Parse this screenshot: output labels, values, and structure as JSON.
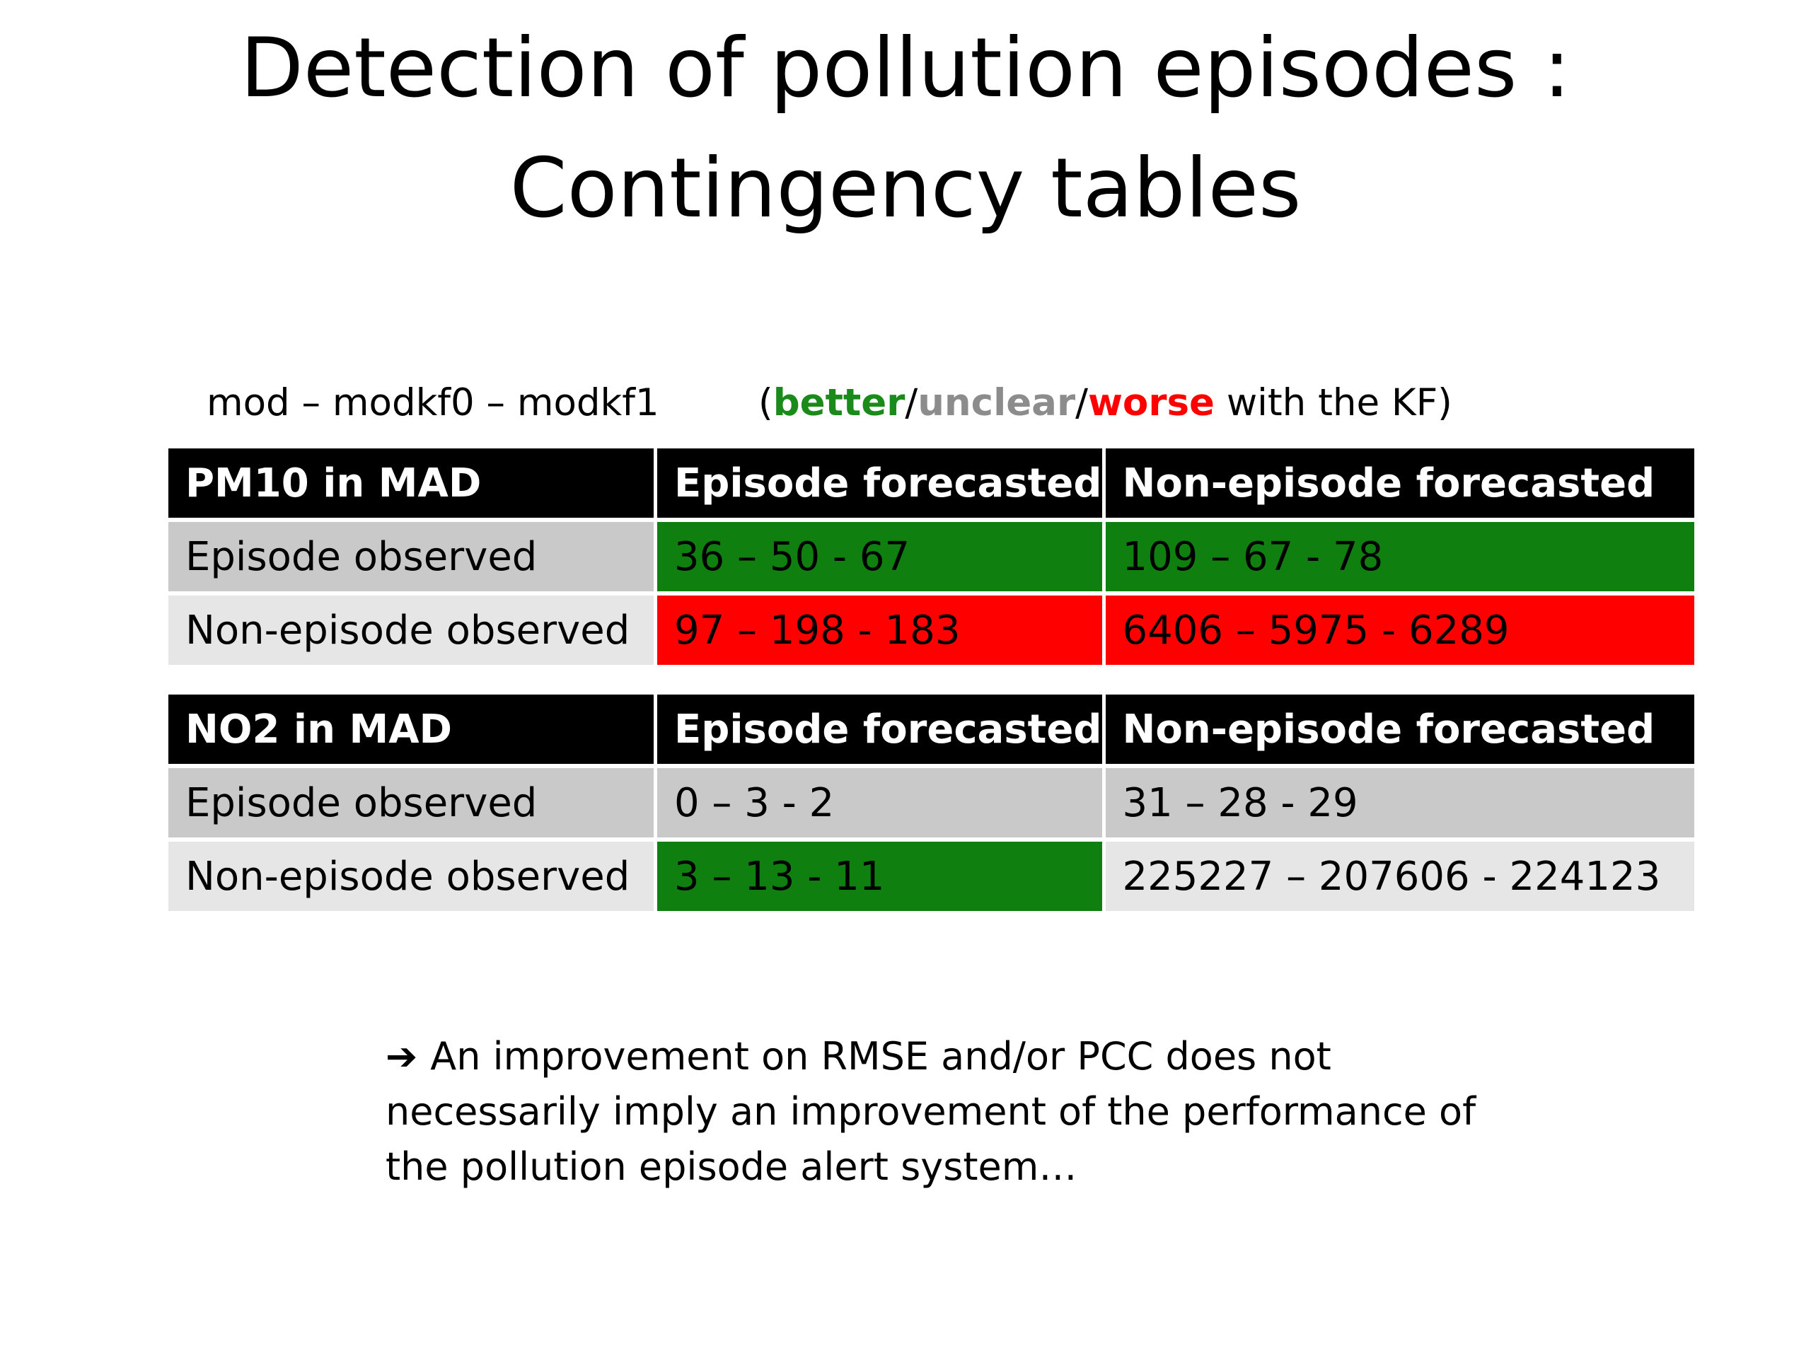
{
  "title": {
    "line1": "Detection of pollution episodes :",
    "line2": "Contingency tables"
  },
  "legend": {
    "models": "mod – modkf0 – modkf1",
    "open": "(",
    "better": "better",
    "slash1": "/",
    "unclear": "unclear",
    "slash2": "/",
    "worse": "worse",
    "tail": " with the KF)"
  },
  "colors": {
    "better": "#1a8a1a",
    "unclear": "#8c8c8c",
    "worse": "#ff0000",
    "cell_better": "#0f800f",
    "cell_worse": "#ff0000",
    "header_bg": "#000000"
  },
  "tables": [
    {
      "header": [
        "PM10 in MAD",
        "Episode forecasted",
        "Non-episode forecasted"
      ],
      "rows": [
        {
          "label": "Episode observed",
          "cells": [
            {
              "value": "36 – 50 - 67",
              "status": "better"
            },
            {
              "value": "109 – 67 - 78",
              "status": "better"
            }
          ]
        },
        {
          "label": "Non-episode observed",
          "cells": [
            {
              "value": "97 – 198 - 183",
              "status": "worse"
            },
            {
              "value": "6406 – 5975 - 6289",
              "status": "worse"
            }
          ]
        }
      ]
    },
    {
      "header": [
        "NO2 in MAD",
        "Episode forecasted",
        "Non-episode forecasted"
      ],
      "rows": [
        {
          "label": "Episode observed",
          "cells": [
            {
              "value": "0 – 3 - 2",
              "status": "unclear"
            },
            {
              "value": "31 – 28 - 29",
              "status": "unclear"
            }
          ]
        },
        {
          "label": "Non-episode observed",
          "cells": [
            {
              "value": "3 – 13 - 11",
              "status": "better"
            },
            {
              "value": "225227 – 207606 - 224123",
              "status": "unclear"
            }
          ]
        }
      ]
    }
  ],
  "conclusion": {
    "arrow_icon": "right-arrow-icon",
    "arrow": "➔",
    "line1": "An improvement on RMSE and/or PCC does not",
    "line2": "necessarily imply an improvement of the performance of",
    "line3": "the pollution episode alert system…"
  }
}
